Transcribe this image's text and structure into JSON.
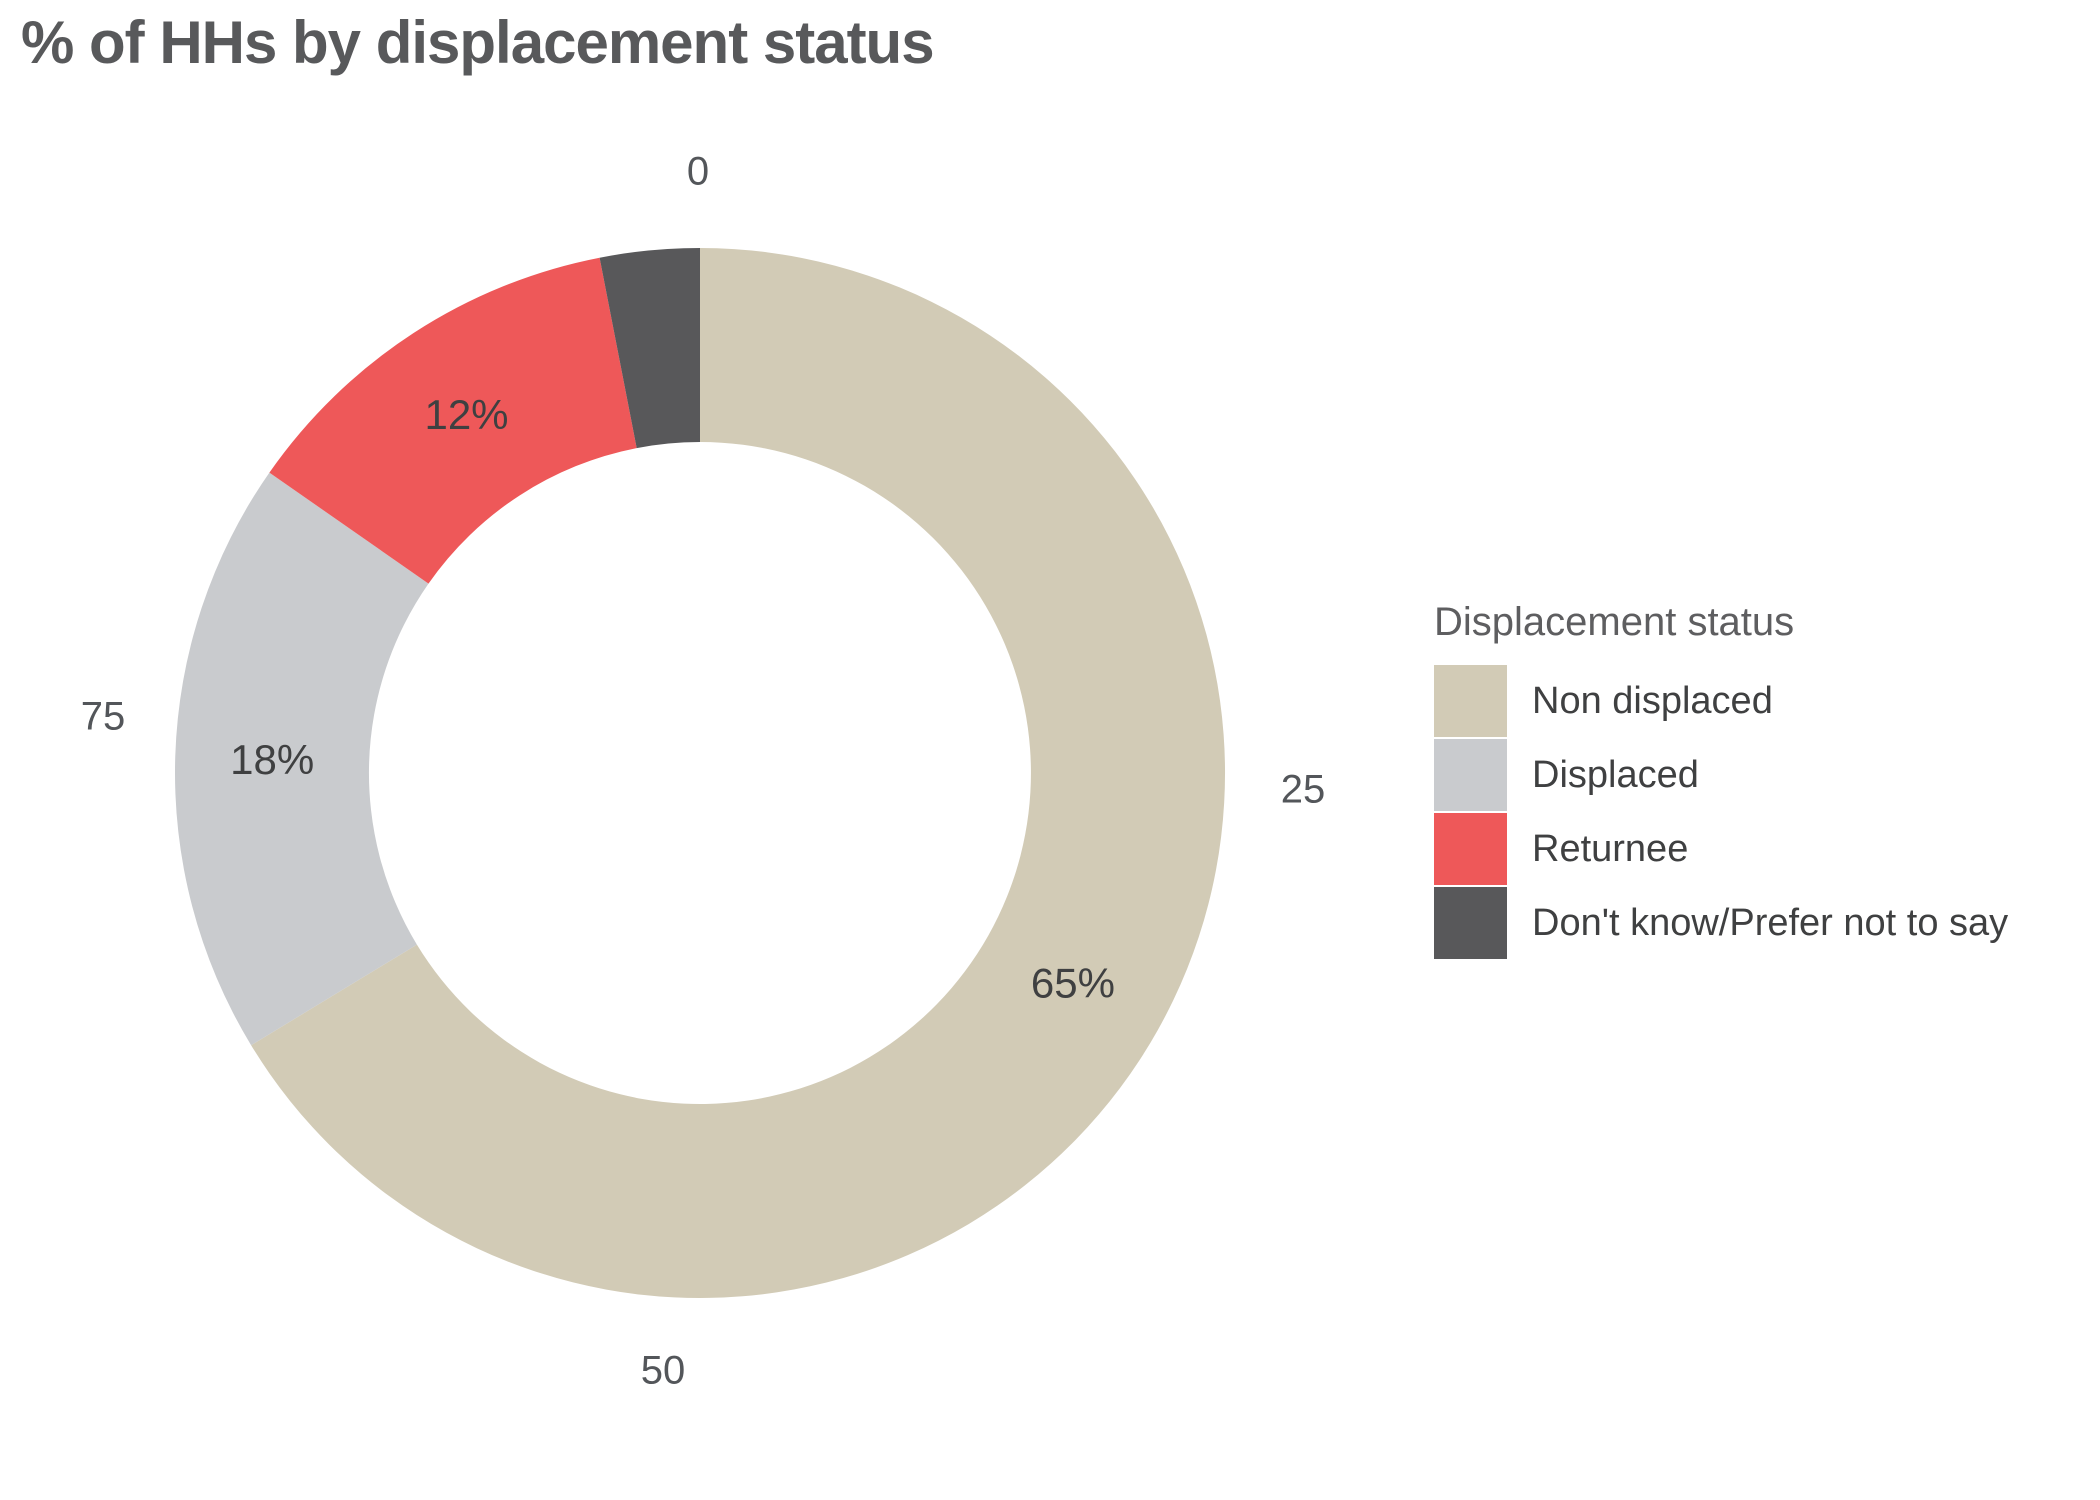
{
  "title": "% of HHs by displacement status",
  "legend": {
    "title": "Displacement status",
    "items": [
      {
        "label": "Non displaced",
        "color": "#d2cbb6"
      },
      {
        "label": "Displaced",
        "color": "#c9cbce"
      },
      {
        "label": "Returnee",
        "color": "#ee5859"
      },
      {
        "label": "Don't know/Prefer not to say",
        "color": "#58585a"
      }
    ]
  },
  "chart_data": {
    "type": "pie",
    "subtype": "donut",
    "title": "% of HHs by displacement status",
    "categories": [
      "Non displaced",
      "Displaced",
      "Returnee",
      "Don't know/Prefer not to say"
    ],
    "values": [
      65,
      18,
      12,
      3
    ],
    "segment_labels": [
      "65%",
      "18%",
      "12%",
      ""
    ],
    "colors": [
      "#d2cbb6",
      "#c9cbce",
      "#ee5859",
      "#58585a"
    ],
    "axis_ticks": [
      "0",
      "25",
      "50",
      "75"
    ],
    "start_angle": "top",
    "direction": "clockwise",
    "inner_radius_ratio": 0.63,
    "legend_position": "right",
    "legend_title": "Displacement status"
  }
}
